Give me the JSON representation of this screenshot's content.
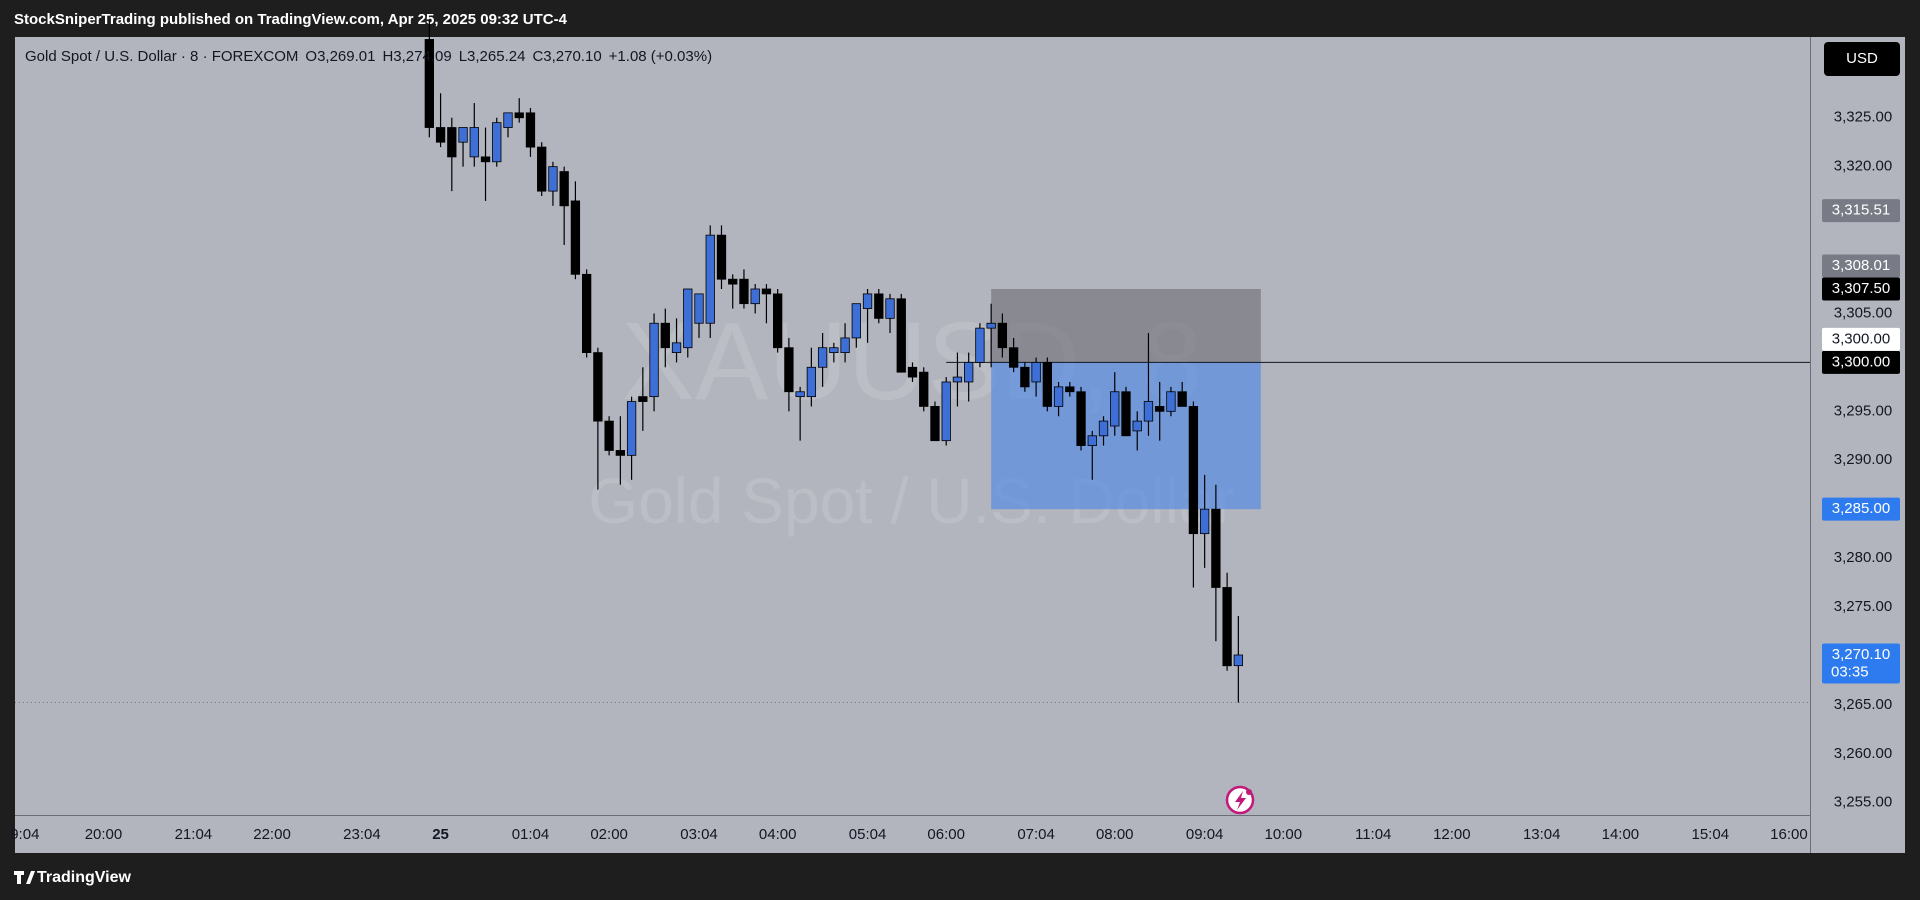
{
  "header": "StockSniperTrading published on TradingView.com, Apr 25, 2025 09:32 UTC-4",
  "currency": "USD",
  "brand": "TradingView",
  "chart_data": {
    "type": "candlestick",
    "title": "Gold Spot / U.S. Dollar · 8 · FOREXCOM",
    "legend_values": [
      "O3,269.01",
      "H3,274.09",
      "L3,265.24",
      "C3,270.10",
      "+1.08 (+0.03%)"
    ],
    "watermark": [
      "XAUUSD, 8",
      "Gold Spot / U.S. Dollar"
    ],
    "up_color": "#3d6fd6",
    "down_color": "#000000",
    "x": [
      1432,
      1440,
      1448,
      1456,
      1464,
      1472,
      1480,
      1488,
      1496,
      1504,
      1512,
      1520,
      1528,
      1536,
      1544,
      1552,
      1560,
      1568,
      1576,
      1584,
      1592,
      1600,
      1608,
      1616,
      1624,
      1632,
      1640,
      1648,
      1656,
      1664,
      1672,
      1680,
      1688,
      1696,
      1704,
      1712,
      1720,
      1728,
      1736,
      1744,
      1752,
      1760,
      1768,
      1776,
      1784,
      1792,
      1800,
      1808,
      1816,
      1824,
      1832,
      1840,
      1848,
      1856,
      1864,
      1872,
      1880,
      1888,
      1896,
      1904,
      1912,
      1920,
      1928,
      1936,
      1944,
      1952,
      1960,
      1968,
      1976,
      1984,
      1992,
      2000,
      2008
    ],
    "open": [
      3333,
      3324,
      3324,
      3322.5,
      3321,
      3321,
      3320.5,
      3324,
      3325.5,
      3325.5,
      3322,
      3317.5,
      3319.5,
      3316.5,
      3309,
      3301,
      3294,
      3291,
      3290.5,
      3296.5,
      3296.5,
      3304,
      3301,
      3301.5,
      3304,
      3304,
      3313,
      3308.5,
      3308.5,
      3306,
      3307.5,
      3307,
      3301.5,
      3296.5,
      3296.5,
      3299.5,
      3301,
      3301,
      3302.5,
      3305.5,
      3307,
      3304.5,
      3306.5,
      3299.5,
      3299,
      3295.5,
      3292,
      3298,
      3298,
      3300,
      3303.5,
      3304,
      3301.5,
      3299.5,
      3298,
      3300,
      3295.5,
      3297.5,
      3297,
      3291.5,
      3292.5,
      3293.5,
      3297,
      3293,
      3294,
      3295.5,
      3295,
      3297,
      3295.5,
      3282.5,
      3285,
      3277,
      3269.01
    ],
    "high": [
      3335,
      3327.5,
      3325,
      3324,
      3326.5,
      3324,
      3325,
      3325.5,
      3327,
      3326,
      3322.5,
      3320.5,
      3320,
      3318.5,
      3309.5,
      3301.5,
      3294.5,
      3294.5,
      3296.5,
      3299.5,
      3305,
      3305.5,
      3304.5,
      3307.5,
      3307,
      3314,
      3314,
      3309,
      3309.5,
      3308,
      3308,
      3307.5,
      3302.5,
      3297.5,
      3301.5,
      3303,
      3302,
      3304,
      3306,
      3307.5,
      3307.5,
      3307,
      3307,
      3300,
      3299.5,
      3296,
      3298.5,
      3301,
      3301,
      3304,
      3306,
      3305,
      3302.5,
      3300,
      3300.5,
      3300.5,
      3298,
      3298,
      3297.5,
      3293,
      3294.5,
      3299,
      3297.5,
      3295,
      3303,
      3298,
      3297.5,
      3298,
      3296,
      3288.5,
      3287.5,
      3278.5,
      3274.09
    ],
    "low": [
      3323,
      3322,
      3317.5,
      3320,
      3320,
      3316.5,
      3320,
      3323,
      3324.5,
      3321,
      3317,
      3316,
      3312,
      3308.5,
      3300.5,
      3287,
      3290.5,
      3287.5,
      3288,
      3293,
      3295,
      3299.5,
      3300,
      3300.5,
      3302.5,
      3302.5,
      3307.5,
      3305.5,
      3305.5,
      3305,
      3304,
      3301,
      3295,
      3292,
      3295.5,
      3297.5,
      3300,
      3300,
      3301.5,
      3302,
      3304,
      3303,
      3299,
      3298,
      3295,
      3292,
      3291.5,
      3295.5,
      3296,
      3299.5,
      3299.5,
      3300.5,
      3299,
      3297,
      3296.5,
      3295,
      3294.5,
      3296.5,
      3291,
      3288,
      3291.5,
      3292.5,
      3292.5,
      3291,
      3292.5,
      3292,
      3294.5,
      3295.5,
      3277,
      3279,
      3271.5,
      3268.5,
      3265.24
    ],
    "close": [
      3324,
      3322.5,
      3321,
      3324,
      3324,
      3320.5,
      3324.5,
      3325.5,
      3325,
      3322,
      3317.5,
      3320,
      3316,
      3309,
      3301,
      3294,
      3291,
      3290.5,
      3296,
      3296,
      3304,
      3301.5,
      3302,
      3307.5,
      3307,
      3313,
      3308.5,
      3308,
      3306,
      3307.5,
      3307,
      3301.5,
      3297,
      3297,
      3299.5,
      3301.5,
      3301.5,
      3302.5,
      3306,
      3307,
      3304.5,
      3306.5,
      3299,
      3298.5,
      3295.5,
      3292,
      3298,
      3298.5,
      3300,
      3303.5,
      3304,
      3301.5,
      3299.5,
      3297.5,
      3300,
      3295.5,
      3297.5,
      3297,
      3291.5,
      3292.5,
      3294,
      3297,
      3292.5,
      3294,
      3296,
      3295,
      3297,
      3295.5,
      3282.5,
      3285,
      3277,
      3269,
      3270.1
    ],
    "xlim": [
      1137,
      2415
    ],
    "xticks": [
      {
        "value": 1144,
        "label": "9:04"
      },
      {
        "value": 1200,
        "label": "20:00"
      },
      {
        "value": 1264,
        "label": "21:04"
      },
      {
        "value": 1320,
        "label": "22:00"
      },
      {
        "value": 1384,
        "label": "23:04"
      },
      {
        "value": 1440,
        "label": "25"
      },
      {
        "value": 1504,
        "label": "01:04"
      },
      {
        "value": 1560,
        "label": "02:00"
      },
      {
        "value": 1624,
        "label": "03:04"
      },
      {
        "value": 1680,
        "label": "04:00"
      },
      {
        "value": 1744,
        "label": "05:04"
      },
      {
        "value": 1800,
        "label": "06:00"
      },
      {
        "value": 1864,
        "label": "07:04"
      },
      {
        "value": 1920,
        "label": "08:00"
      },
      {
        "value": 1984,
        "label": "09:04"
      },
      {
        "value": 2040,
        "label": "10:00"
      },
      {
        "value": 2104,
        "label": "11:04"
      },
      {
        "value": 2160,
        "label": "12:00"
      },
      {
        "value": 2224,
        "label": "13:04"
      },
      {
        "value": 2280,
        "label": "14:00"
      },
      {
        "value": 2344,
        "label": "15:04"
      },
      {
        "value": 2400,
        "label": "16:00"
      }
    ],
    "ylim": [
      3253.75,
      3333.25
    ],
    "yticks": [
      {
        "value": 3255,
        "label": "3,255.00"
      },
      {
        "value": 3260,
        "label": "3,260.00"
      },
      {
        "value": 3265,
        "label": "3,265.00"
      },
      {
        "value": 3270,
        "label": "3,270.00"
      },
      {
        "value": 3275,
        "label": "3,275.00"
      },
      {
        "value": 3280,
        "label": "3,280.00"
      },
      {
        "value": 3285,
        "label": "3,285.00"
      },
      {
        "value": 3290,
        "label": "3,290.00"
      },
      {
        "value": 3295,
        "label": "3,295.00"
      },
      {
        "value": 3300,
        "label": "3,300.00"
      },
      {
        "value": 3305,
        "label": "3,305.00"
      },
      {
        "value": 3310,
        "label": "3,310.00"
      },
      {
        "value": 3315,
        "label": "3,315.00"
      },
      {
        "value": 3320,
        "label": "3,320.00"
      },
      {
        "value": 3325,
        "label": "3,325.00"
      }
    ],
    "grid": false,
    "zones": [
      {
        "from": 1832,
        "to": 2024,
        "top": 3307.5,
        "bottom": 3300,
        "color": "#6f7076"
      },
      {
        "from": 1832,
        "to": 2024,
        "top": 3300,
        "bottom": 3285,
        "color": "#4a86e8"
      }
    ],
    "hline": {
      "value": 3300,
      "from": 1800
    },
    "dotted_line": 3265.24,
    "price_labels": [
      {
        "value": 3315.51,
        "label": "3,315.51",
        "color": "#787b86",
        "text_color": "#ffffff"
      },
      {
        "value": 3307.5,
        "label": "3,307.50",
        "color": "#000000",
        "text_color": "#ffffff"
      },
      {
        "value": 3308.01,
        "label": "3,308.01",
        "color": "#787b86",
        "text_color": "#ffffff"
      },
      {
        "value": 3300,
        "label": "3,300.00",
        "color": "#000000",
        "text_color": "#ffffff"
      },
      {
        "value": 3300,
        "label": "3,300.00",
        "color": "#ffffff",
        "text_color": "#131722"
      },
      {
        "value": 3285,
        "label": "3,285.00",
        "color": "#2e7bf0",
        "text_color": "#ffffff"
      },
      {
        "value": 3270.1,
        "label": "3,270.10",
        "sublabel": "03:35",
        "color": "#2e7bf0",
        "text_color": "#ffffff"
      }
    ]
  }
}
